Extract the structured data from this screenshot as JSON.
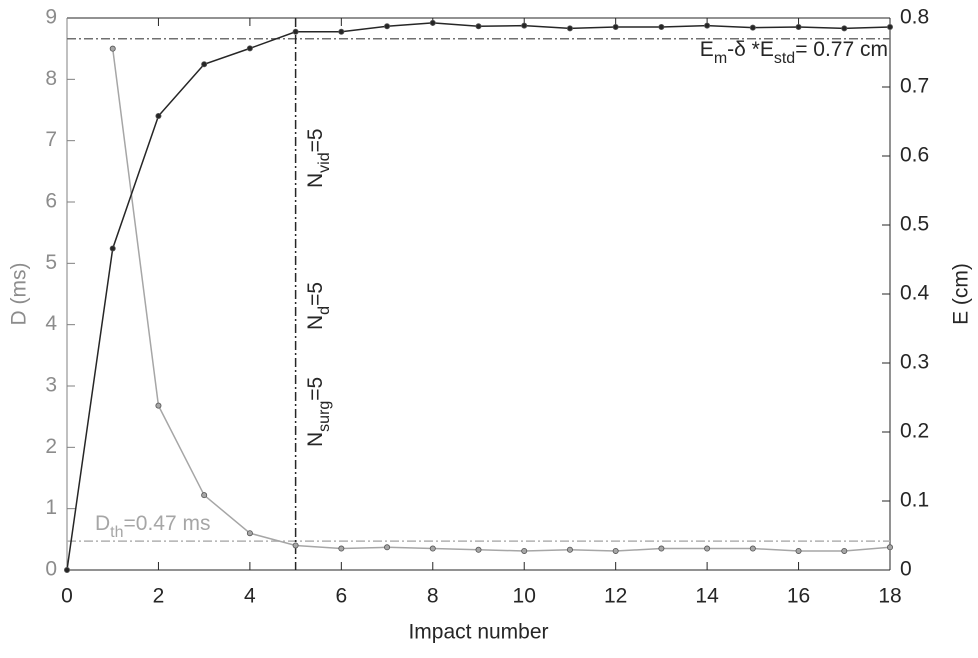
{
  "chart_data": {
    "type": "line",
    "xlabel": "Impact number",
    "ylabel": "D (ms)",
    "y2label": "E (cm)",
    "xlim": [
      0,
      18
    ],
    "xticks": [
      0,
      2,
      4,
      6,
      8,
      10,
      12,
      14,
      16,
      18
    ],
    "ylim": [
      0,
      9
    ],
    "yticks": [
      0,
      1,
      2,
      3,
      4,
      5,
      6,
      7,
      8,
      9
    ],
    "y2lim": [
      0,
      0.8
    ],
    "y2ticks": [
      0,
      0.1,
      0.2,
      0.3,
      0.4,
      0.5,
      0.6,
      0.7,
      0.8
    ],
    "series": [
      {
        "name": "D",
        "color": "#a6a6a6",
        "x": [
          1,
          2,
          3,
          4,
          5,
          6,
          7,
          8,
          9,
          10,
          11,
          12,
          13,
          14,
          15,
          16,
          17,
          18
        ],
        "values": [
          8.5,
          2.68,
          1.22,
          0.6,
          0.4,
          0.35,
          0.37,
          0.35,
          0.33,
          0.31,
          0.33,
          0.31,
          0.35,
          0.35,
          0.35,
          0.31,
          0.31,
          0.37
        ]
      },
      {
        "name": "E",
        "color": "#262626",
        "axis": "y2",
        "x": [
          0,
          1,
          2,
          3,
          4,
          5,
          6,
          7,
          8,
          9,
          10,
          11,
          12,
          13,
          14,
          15,
          16,
          17,
          18
        ],
        "values": [
          0,
          0.466,
          0.658,
          0.733,
          0.756,
          0.78,
          0.78,
          0.788,
          0.793,
          0.788,
          0.789,
          0.785,
          0.787,
          0.787,
          0.789,
          0.786,
          0.787,
          0.785,
          0.787
        ]
      }
    ],
    "reference_lines": [
      {
        "axis": "y2",
        "value": 0.77,
        "color": "#707070"
      },
      {
        "axis": "y",
        "value": 0.47,
        "color": "#b0b0b0"
      },
      {
        "axis": "x",
        "value": 5,
        "color": "#262626"
      }
    ],
    "annotations": [
      {
        "color": "#262626",
        "parts": [
          {
            "text": "E"
          },
          {
            "sub": "m"
          },
          {
            "text": "-δ *E"
          },
          {
            "sub": "std"
          },
          {
            "text": "= 0.77 cm"
          }
        ]
      },
      {
        "color": "#a6a6a6",
        "parts": [
          {
            "text": "D"
          },
          {
            "sub": "th"
          },
          {
            "text": "=0.47 ms"
          }
        ]
      },
      {
        "color": "#262626",
        "parts": [
          {
            "text": "N"
          },
          {
            "sub": "surg"
          },
          {
            "text": "=5"
          }
        ]
      },
      {
        "color": "#262626",
        "parts": [
          {
            "text": "N"
          },
          {
            "sub": "d"
          },
          {
            "text": "=5"
          }
        ]
      },
      {
        "color": "#262626",
        "parts": [
          {
            "text": "N"
          },
          {
            "sub": "vid"
          },
          {
            "text": "=5"
          }
        ]
      }
    ]
  }
}
